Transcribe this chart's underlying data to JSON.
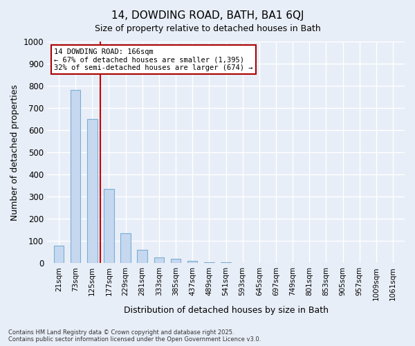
{
  "title1": "14, DOWDING ROAD, BATH, BA1 6QJ",
  "title2": "Size of property relative to detached houses in Bath",
  "xlabel": "Distribution of detached houses by size in Bath",
  "ylabel": "Number of detached properties",
  "categories": [
    "21sqm",
    "73sqm",
    "125sqm",
    "177sqm",
    "229sqm",
    "281sqm",
    "333sqm",
    "385sqm",
    "437sqm",
    "489sqm",
    "541sqm",
    "593sqm",
    "645sqm",
    "697sqm",
    "749sqm",
    "801sqm",
    "853sqm",
    "905sqm",
    "957sqm",
    "1009sqm",
    "1061sqm"
  ],
  "values": [
    80,
    780,
    650,
    335,
    135,
    60,
    25,
    20,
    10,
    5,
    3,
    2,
    2,
    1,
    1,
    1,
    0,
    0,
    0,
    0,
    0
  ],
  "bar_color": "#c5d8ef",
  "bar_edge_color": "#7aadd4",
  "annotation_text": "14 DOWDING ROAD: 166sqm\n← 67% of detached houses are smaller (1,395)\n32% of semi-detached houses are larger (674) →",
  "annotation_box_color": "#ffffff",
  "annotation_box_edge": "#aa0000",
  "ylim": [
    0,
    1000
  ],
  "yticks": [
    0,
    100,
    200,
    300,
    400,
    500,
    600,
    700,
    800,
    900,
    1000
  ],
  "footer1": "Contains HM Land Registry data © Crown copyright and database right 2025.",
  "footer2": "Contains public sector information licensed under the Open Government Licence v3.0.",
  "bg_color": "#e8eef7",
  "plot_bg_color": "#e8eef7",
  "grid_color": "#ffffff",
  "title_fontsize": 11,
  "subtitle_fontsize": 9
}
